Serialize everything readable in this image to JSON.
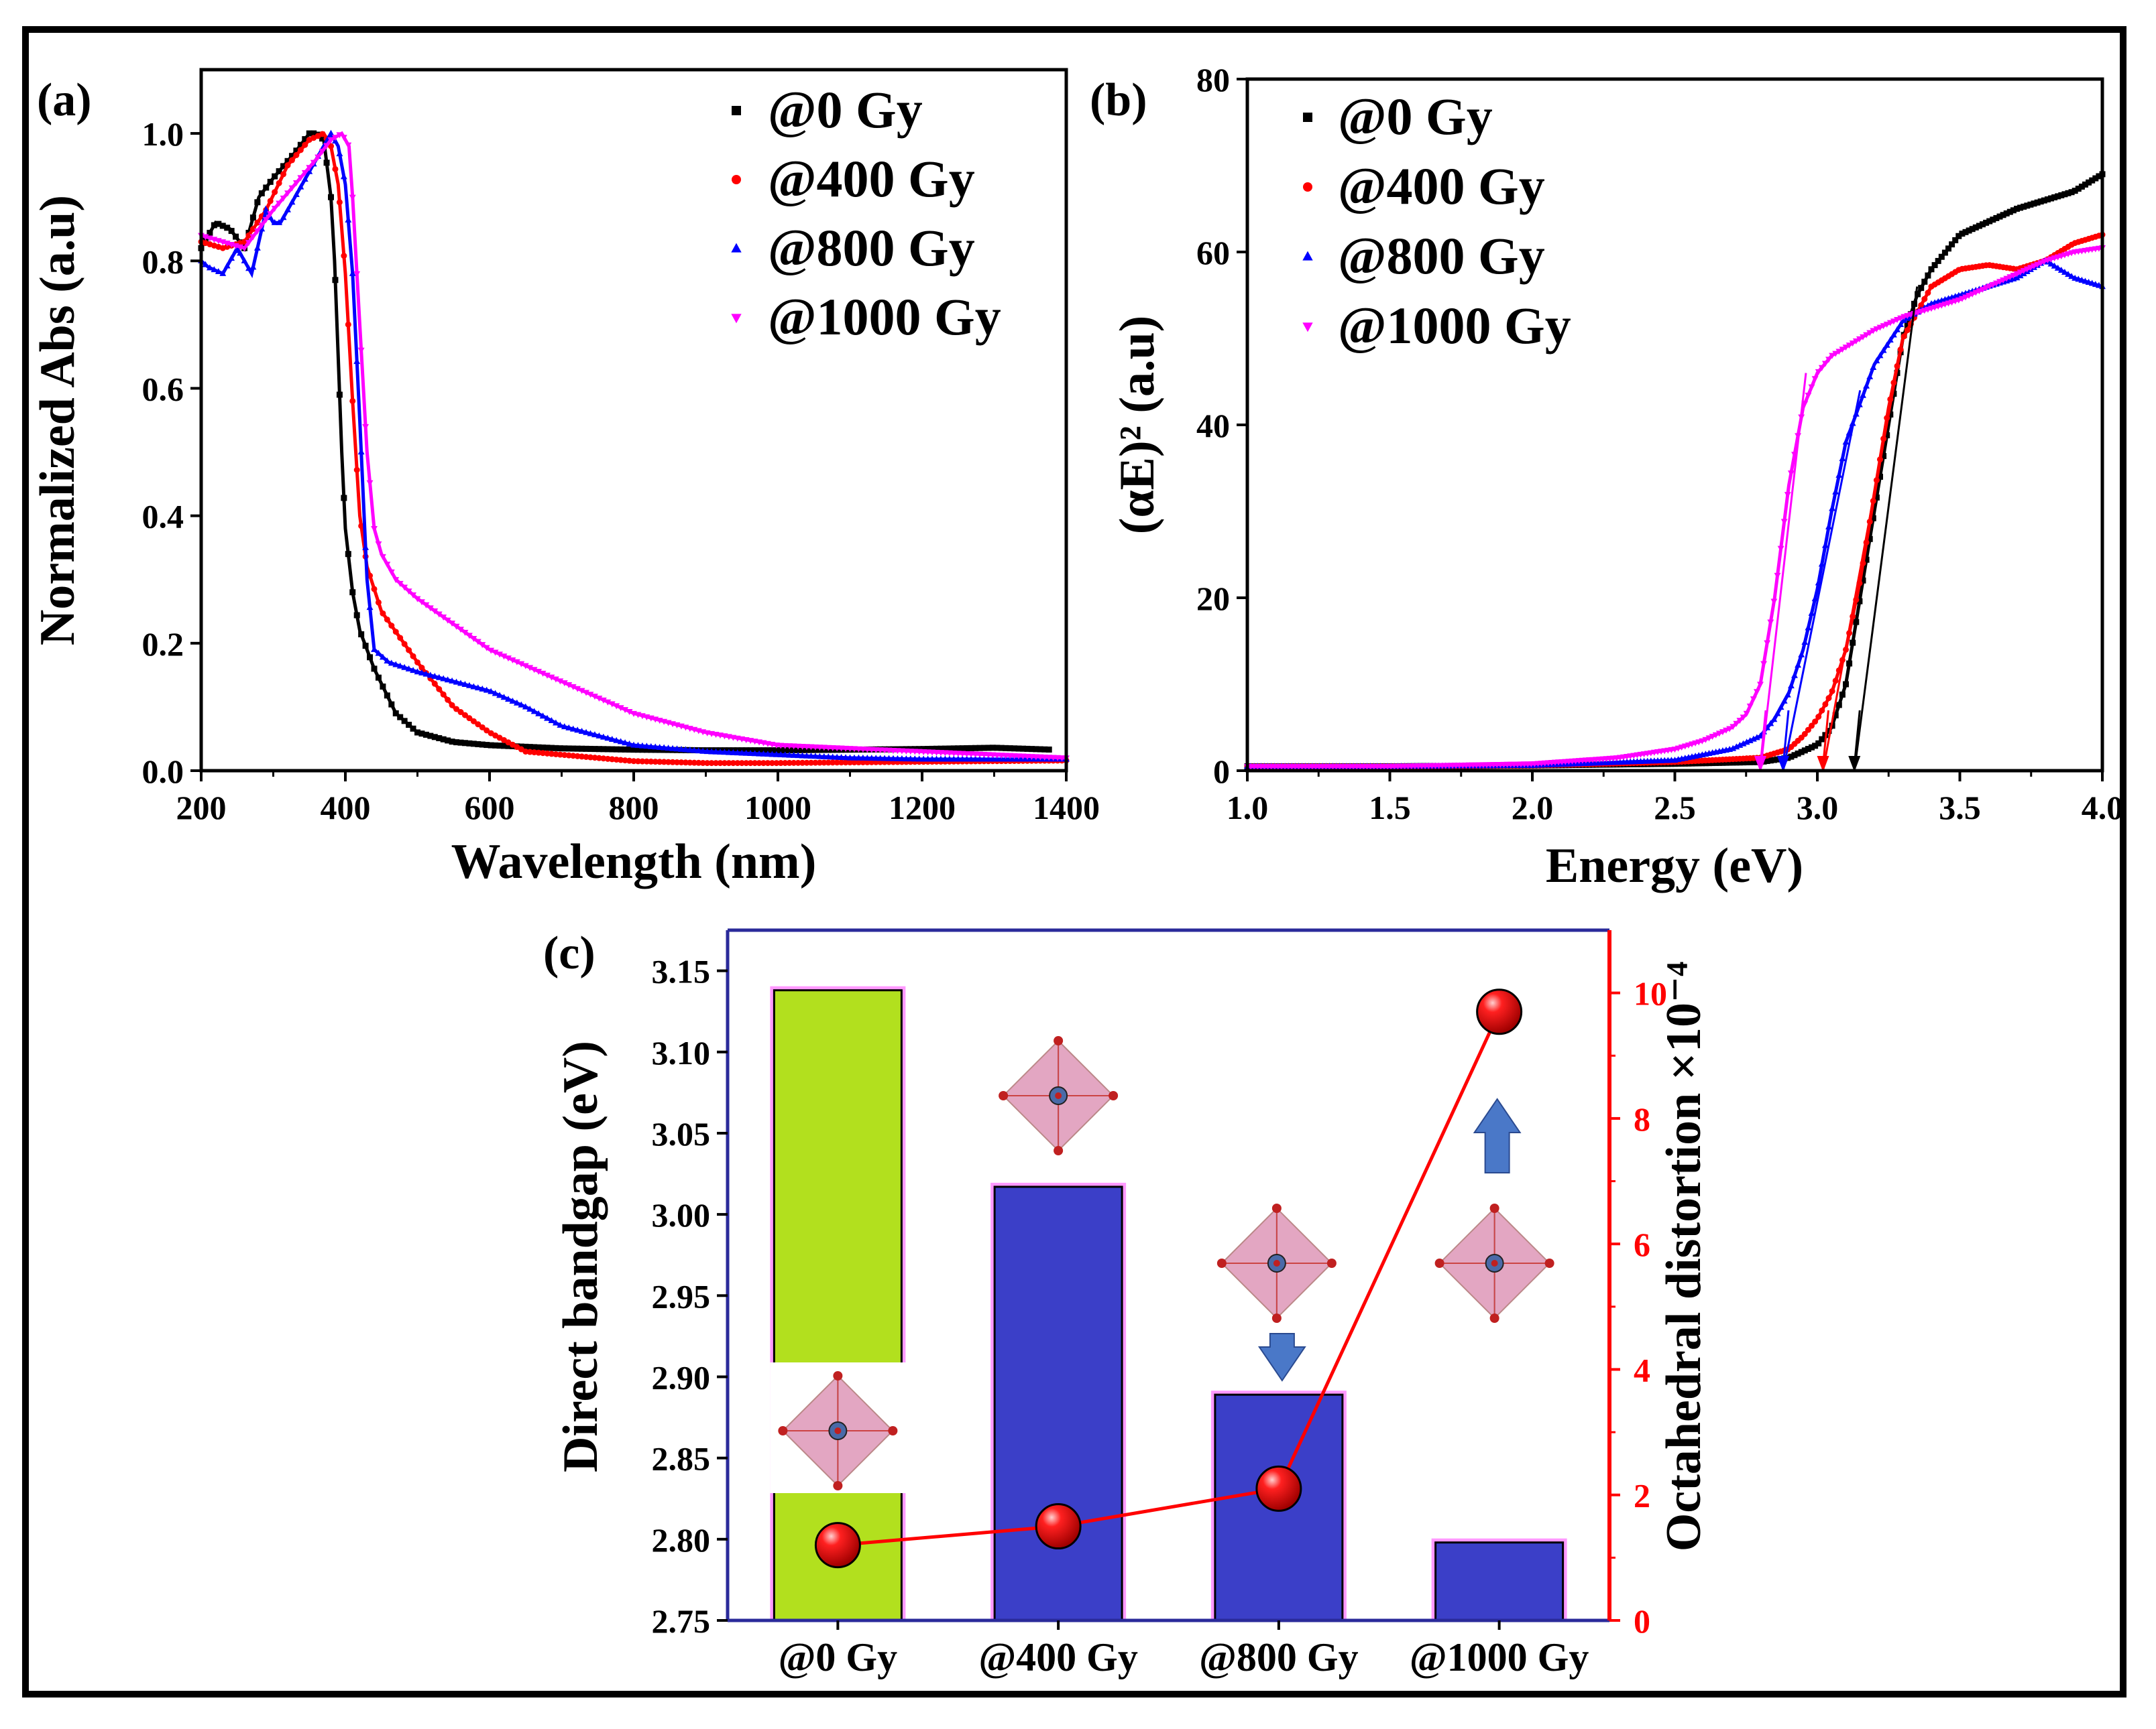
{
  "figure": {
    "panels": {
      "a": {
        "label": "(a)",
        "xlabel": "Wavelength (nm)",
        "ylabel": "Normalized Abs (a.u)"
      },
      "b": {
        "label": "(b)",
        "xlabel": "Energy (eV)",
        "ylabel": "(αE)² (a.u)"
      },
      "c": {
        "label": "(c)",
        "ylabel_left": "Direct bandgap (eV)",
        "ylabel_right": "Octahedral distortion ×10⁻⁴"
      }
    }
  },
  "chart_data": [
    {
      "type": "line",
      "title": "",
      "panel_label": "(a)",
      "xlabel": "Wavelength (nm)",
      "ylabel": "Normalized Abs (a.u)",
      "xlim": [
        200,
        1400
      ],
      "ylim": [
        0.0,
        1.1
      ],
      "xticks": [
        200,
        400,
        600,
        800,
        1000,
        1200,
        1400
      ],
      "yticks": [
        0.0,
        0.2,
        0.4,
        0.6,
        0.8,
        1.0
      ],
      "xtick_labels": [
        "200",
        "400",
        "600",
        "800",
        "1000",
        "1200",
        "1400"
      ],
      "ytick_labels": [
        "0.0",
        "0.2",
        "0.4",
        "0.6",
        "0.8",
        "1.0"
      ],
      "grid": false,
      "legend": "top-right",
      "series": [
        {
          "name": "@0 Gy",
          "color": "#000000",
          "marker": "square",
          "x": [
            200,
            220,
            240,
            260,
            280,
            300,
            330,
            350,
            360,
            370,
            380,
            385,
            390,
            395,
            400,
            410,
            420,
            440,
            470,
            500,
            550,
            600,
            700,
            800,
            900,
            1000,
            1100,
            1200,
            1300,
            1380
          ],
          "y": [
            0.82,
            0.86,
            0.85,
            0.82,
            0.9,
            0.93,
            0.97,
            1.0,
            1.0,
            0.99,
            0.9,
            0.8,
            0.65,
            0.5,
            0.38,
            0.28,
            0.22,
            0.16,
            0.09,
            0.06,
            0.045,
            0.04,
            0.035,
            0.033,
            0.032,
            0.032,
            0.033,
            0.034,
            0.036,
            0.033
          ]
        },
        {
          "name": "@400 Gy",
          "color": "#ff0000",
          "marker": "circle",
          "x": [
            200,
            230,
            260,
            290,
            320,
            350,
            370,
            380,
            390,
            400,
            410,
            420,
            430,
            450,
            500,
            550,
            600,
            650,
            700,
            800,
            900,
            1000,
            1100,
            1200,
            1300,
            1400
          ],
          "y": [
            0.83,
            0.82,
            0.83,
            0.88,
            0.95,
            0.99,
            1.0,
            0.98,
            0.92,
            0.78,
            0.58,
            0.4,
            0.32,
            0.25,
            0.17,
            0.1,
            0.06,
            0.03,
            0.025,
            0.015,
            0.012,
            0.012,
            0.013,
            0.014,
            0.015,
            0.016
          ]
        },
        {
          "name": "@800 Gy",
          "color": "#0000ff",
          "marker": "triangle-up",
          "x": [
            200,
            210,
            230,
            250,
            270,
            290,
            300,
            310,
            330,
            350,
            370,
            380,
            390,
            400,
            410,
            420,
            430,
            440,
            460,
            500,
            550,
            600,
            650,
            700,
            800,
            900,
            1000,
            1100,
            1200,
            1300,
            1400
          ],
          "y": [
            0.8,
            0.79,
            0.78,
            0.82,
            0.78,
            0.88,
            0.86,
            0.86,
            0.9,
            0.94,
            0.98,
            1.0,
            0.98,
            0.92,
            0.78,
            0.55,
            0.3,
            0.19,
            0.17,
            0.155,
            0.14,
            0.125,
            0.1,
            0.07,
            0.04,
            0.03,
            0.025,
            0.02,
            0.018,
            0.018,
            0.018
          ]
        },
        {
          "name": "@1000 Gy",
          "color": "#ff00ff",
          "marker": "triangle-down",
          "x": [
            200,
            230,
            260,
            280,
            300,
            330,
            360,
            380,
            395,
            405,
            410,
            420,
            430,
            440,
            450,
            470,
            500,
            550,
            600,
            700,
            800,
            900,
            1000,
            1100,
            1200,
            1300,
            1400
          ],
          "y": [
            0.84,
            0.83,
            0.82,
            0.85,
            0.88,
            0.92,
            0.96,
            0.99,
            1.0,
            0.98,
            0.9,
            0.7,
            0.5,
            0.38,
            0.34,
            0.3,
            0.27,
            0.23,
            0.19,
            0.14,
            0.09,
            0.06,
            0.04,
            0.035,
            0.03,
            0.025,
            0.02
          ]
        }
      ]
    },
    {
      "type": "line",
      "title": "",
      "panel_label": "(b)",
      "xlabel": "Energy (eV)",
      "ylabel": "(αE)² (a.u)",
      "xlim": [
        1.0,
        4.0
      ],
      "ylim": [
        0,
        80
      ],
      "xticks": [
        1.0,
        1.5,
        2.0,
        2.5,
        3.0,
        3.5,
        4.0
      ],
      "yticks": [
        0,
        20,
        40,
        60,
        80
      ],
      "xtick_labels": [
        "1.0",
        "1.5",
        "2.0",
        "2.5",
        "3.0",
        "3.5",
        "4.0"
      ],
      "ytick_labels": [
        "0",
        "20",
        "40",
        "60",
        "80"
      ],
      "grid": false,
      "legend": "top-left",
      "annotations": "linear fit lines extrapolated to the energy axis with arrows at the intercepts (approx. 2.80, 2.88, 3.02, 3.13 eV)",
      "series": [
        {
          "name": "@0 Gy",
          "color": "#000000",
          "marker": "square",
          "x": [
            1.0,
            1.5,
            2.0,
            2.5,
            2.8,
            2.9,
            3.0,
            3.05,
            3.1,
            3.15,
            3.2,
            3.25,
            3.3,
            3.35,
            3.4,
            3.5,
            3.6,
            3.7,
            3.8,
            3.9,
            4.0
          ],
          "y": [
            0.5,
            0.5,
            0.6,
            0.8,
            1.0,
            1.5,
            3.0,
            5.0,
            10.0,
            20.0,
            30.0,
            40.0,
            50.0,
            55.0,
            58.0,
            62.0,
            63.5,
            65.0,
            66.0,
            67.0,
            69.0
          ],
          "fit": {
            "x": [
              3.13,
              3.35
            ],
            "y": [
              0,
              56
            ]
          }
        },
        {
          "name": "@400 Gy",
          "color": "#ff0000",
          "marker": "circle",
          "x": [
            1.0,
            1.5,
            2.0,
            2.5,
            2.8,
            2.9,
            2.95,
            3.0,
            3.05,
            3.1,
            3.15,
            3.2,
            3.25,
            3.3,
            3.4,
            3.5,
            3.6,
            3.7,
            3.8,
            3.9,
            4.0
          ],
          "y": [
            0.5,
            0.5,
            0.6,
            1.0,
            1.5,
            2.5,
            4.0,
            6.0,
            9.0,
            14.0,
            22.0,
            32.0,
            42.0,
            50.0,
            56.0,
            58.0,
            58.5,
            58.0,
            59.0,
            61.0,
            62.0
          ],
          "fit": {
            "x": [
              3.02,
              3.3
            ],
            "y": [
              0,
              50
            ]
          }
        },
        {
          "name": "@800 Gy",
          "color": "#0000ff",
          "marker": "triangle-up",
          "x": [
            1.0,
            1.5,
            2.0,
            2.5,
            2.7,
            2.8,
            2.85,
            2.9,
            2.95,
            3.0,
            3.05,
            3.1,
            3.2,
            3.3,
            3.4,
            3.5,
            3.6,
            3.7,
            3.8,
            3.9,
            4.0
          ],
          "y": [
            0.5,
            0.5,
            0.6,
            1.2,
            2.5,
            4.0,
            6.0,
            9.0,
            14.0,
            21.0,
            30.0,
            38.0,
            47.0,
            52.0,
            54.0,
            55.0,
            56.0,
            57.0,
            59.0,
            57.0,
            56.0
          ],
          "fit": {
            "x": [
              2.88,
              3.15
            ],
            "y": [
              0,
              44
            ]
          }
        },
        {
          "name": "@1000 Gy",
          "color": "#ff00ff",
          "marker": "triangle-down",
          "x": [
            1.0,
            1.5,
            2.0,
            2.3,
            2.5,
            2.6,
            2.7,
            2.75,
            2.8,
            2.85,
            2.9,
            2.95,
            3.0,
            3.05,
            3.1,
            3.2,
            3.3,
            3.4,
            3.5,
            3.6,
            3.7,
            3.8,
            3.9,
            4.0
          ],
          "y": [
            0.5,
            0.5,
            0.8,
            1.5,
            2.5,
            3.5,
            5.0,
            6.5,
            10.0,
            20.0,
            33.0,
            42.0,
            46.0,
            48.0,
            49.0,
            51.0,
            52.5,
            53.5,
            54.5,
            56.0,
            57.5,
            59.0,
            60.0,
            60.5
          ],
          "fit": {
            "x": [
              2.8,
              2.96
            ],
            "y": [
              0,
              46
            ]
          }
        }
      ]
    },
    {
      "type": "bar",
      "title": "",
      "panel_label": "(c)",
      "categories": [
        "@0 Gy",
        "@400 Gy",
        "@800 Gy",
        "@1000 Gy"
      ],
      "ylabel": "Direct bandgap (eV)",
      "ylim": [
        2.75,
        3.175
      ],
      "yticks": [
        2.75,
        2.8,
        2.85,
        2.9,
        2.95,
        3.0,
        3.05,
        3.1,
        3.15
      ],
      "ytick_labels": [
        "2.75",
        "2.80",
        "2.85",
        "2.90",
        "2.95",
        "3.00",
        "3.05",
        "3.10",
        "3.15"
      ],
      "values": [
        3.138,
        3.017,
        2.889,
        2.798
      ],
      "bar_colors": [
        "#b2e01e",
        "#3b3fc8",
        "#3b3fc8",
        "#3b3fc8"
      ],
      "bar_edge_color": "#ff99ff",
      "secondary_axis": {
        "type": "line",
        "ylabel": "Octahedral distortion ×10⁻⁴",
        "ylim": [
          0,
          11
        ],
        "yticks": [
          0,
          2,
          4,
          6,
          8,
          10
        ],
        "ytick_labels": [
          "0",
          "2",
          "4",
          "6",
          "8",
          "10"
        ],
        "color": "#ff0000",
        "values": [
          1.2,
          1.5,
          2.1,
          9.7
        ]
      },
      "grid": false
    }
  ]
}
